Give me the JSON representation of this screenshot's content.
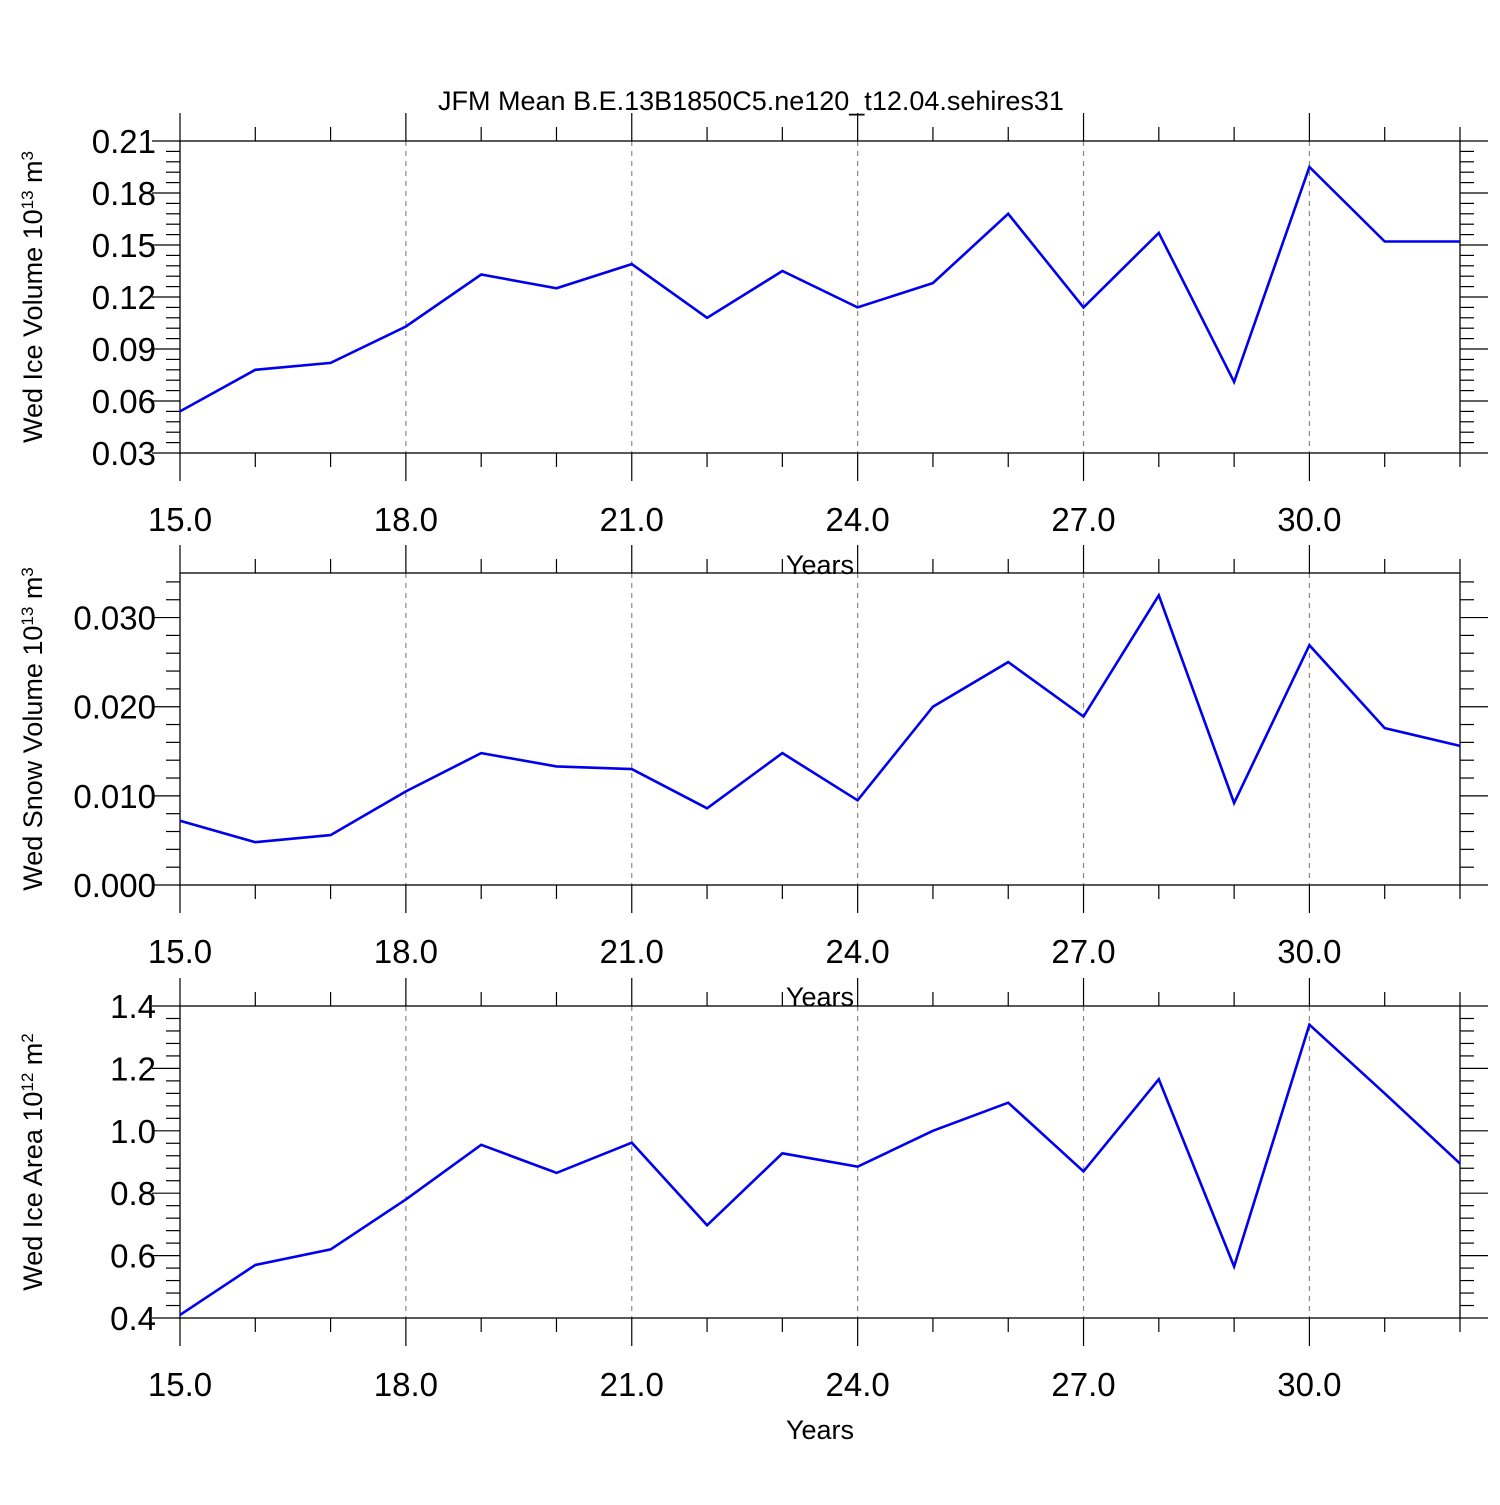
{
  "title": "JFM Mean B.E.13B1850C5.ne120_t12.04.sehires31",
  "colors": {
    "line": "#0000ee",
    "axis": "#000000",
    "grid": "#888888"
  },
  "chart_data": [
    {
      "type": "line",
      "xlabel": "Years",
      "ylabel": {
        "prefix": "Wed Ice Volume 10",
        "exponent": "13",
        "unit": " m",
        "unit_exponent": "3"
      },
      "xlim": [
        15,
        32
      ],
      "ylim": [
        0.03,
        0.21
      ],
      "xticks": [
        15,
        18,
        21,
        24,
        27,
        30
      ],
      "xtick_labels": [
        "15.0",
        "18.0",
        "21.0",
        "24.0",
        "27.0",
        "30.0"
      ],
      "yticks": [
        0.03,
        0.06,
        0.09,
        0.12,
        0.15,
        0.18,
        0.21
      ],
      "ytick_labels": [
        "0.03",
        "0.06",
        "0.09",
        "0.12",
        "0.15",
        "0.18",
        "0.21"
      ],
      "grid": "vertical dashed at major x ticks",
      "x": [
        15,
        16,
        17,
        18,
        19,
        20,
        21,
        22,
        23,
        24,
        25,
        26,
        27,
        28,
        29,
        30,
        31,
        32
      ],
      "values": [
        0.054,
        0.078,
        0.082,
        0.103,
        0.133,
        0.125,
        0.139,
        0.108,
        0.135,
        0.114,
        0.128,
        0.168,
        0.114,
        0.157,
        0.071,
        0.195,
        0.152,
        0.152
      ]
    },
    {
      "type": "line",
      "xlabel": "Years",
      "ylabel": {
        "prefix": "Wed Snow Volume 10",
        "exponent": "13",
        "unit": " m",
        "unit_exponent": "3"
      },
      "xlim": [
        15,
        32
      ],
      "ylim": [
        0.0,
        0.035
      ],
      "xticks": [
        15,
        18,
        21,
        24,
        27,
        30
      ],
      "xtick_labels": [
        "15.0",
        "18.0",
        "21.0",
        "24.0",
        "27.0",
        "30.0"
      ],
      "yticks": [
        0.0,
        0.01,
        0.02,
        0.03
      ],
      "ytick_labels": [
        "0.000",
        "0.010",
        "0.020",
        "0.030"
      ],
      "grid": "vertical dashed at major x ticks",
      "x": [
        15,
        16,
        17,
        18,
        19,
        20,
        21,
        22,
        23,
        24,
        25,
        26,
        27,
        28,
        29,
        30,
        31,
        32
      ],
      "values": [
        0.0072,
        0.0048,
        0.0056,
        0.0105,
        0.0148,
        0.0133,
        0.013,
        0.0086,
        0.0148,
        0.0095,
        0.02,
        0.025,
        0.0189,
        0.0325,
        0.0092,
        0.0269,
        0.0176,
        0.0156
      ]
    },
    {
      "type": "line",
      "xlabel": "Years",
      "ylabel": {
        "prefix": "Wed Ice Area 10",
        "exponent": "12",
        "unit": " m",
        "unit_exponent": "2"
      },
      "xlim": [
        15,
        32
      ],
      "ylim": [
        0.4,
        1.4
      ],
      "xticks": [
        15,
        18,
        21,
        24,
        27,
        30
      ],
      "xtick_labels": [
        "15.0",
        "18.0",
        "21.0",
        "24.0",
        "27.0",
        "30.0"
      ],
      "yticks": [
        0.4,
        0.6,
        0.8,
        1.0,
        1.2,
        1.4
      ],
      "ytick_labels": [
        "0.4",
        "0.6",
        "0.8",
        "1.0",
        "1.2",
        "1.4"
      ],
      "grid": "vertical dashed at major x ticks",
      "x": [
        15,
        16,
        17,
        18,
        19,
        20,
        21,
        22,
        23,
        24,
        25,
        26,
        27,
        28,
        29,
        30,
        31,
        32
      ],
      "values": [
        0.41,
        0.57,
        0.62,
        0.78,
        0.955,
        0.865,
        0.962,
        0.697,
        0.928,
        0.885,
        1.0,
        1.09,
        0.87,
        1.165,
        0.565,
        1.34,
        1.12,
        0.895
      ]
    }
  ]
}
